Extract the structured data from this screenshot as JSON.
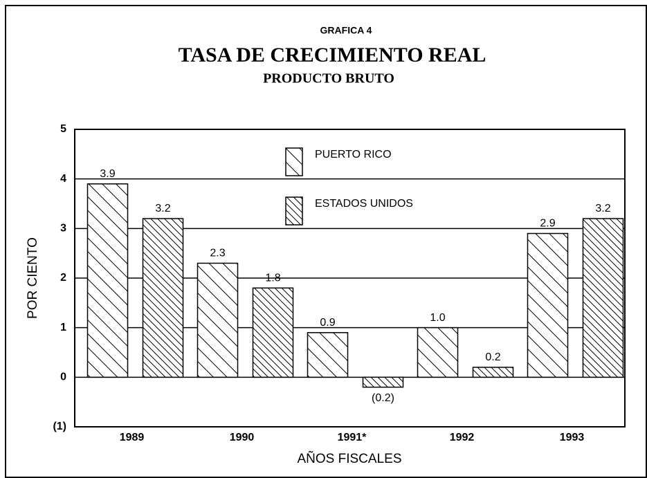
{
  "chart_data": {
    "type": "bar",
    "kicker": "GRAFICA 4",
    "title": "TASA DE CRECIMIENTO REAL",
    "subtitle": "PRODUCTO BRUTO",
    "y_label": "POR CIENTO",
    "x_label": "AÑOS FISCALES",
    "categories": [
      "1989",
      "1990",
      "1991*",
      "1992",
      "1993"
    ],
    "series": [
      {
        "name": "PUERTO RICO",
        "color": "#000000",
        "values": [
          3.9,
          2.3,
          0.9,
          1.0,
          2.9
        ],
        "value_labels": [
          "3.9",
          "2.3",
          "0.9",
          "1.0",
          "2.9"
        ]
      },
      {
        "name": "ESTADOS UNIDOS",
        "color": "#000000",
        "values": [
          3.2,
          1.8,
          -0.2,
          0.2,
          3.2
        ],
        "value_labels": [
          "3.2",
          "1.8",
          "(0.2)",
          "0.2",
          "3.2"
        ]
      }
    ],
    "ylim": [
      -1,
      5
    ],
    "yticks": [
      {
        "value": -1,
        "label": "(1)"
      },
      0,
      1,
      2,
      3,
      4,
      5
    ],
    "grid": true
  }
}
